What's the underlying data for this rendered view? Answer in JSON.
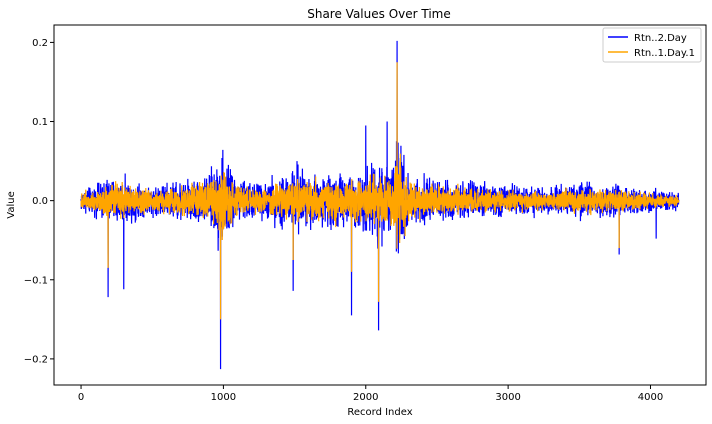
{
  "chart_data": {
    "type": "line",
    "title": "Share Values Over Time",
    "xlabel": "Record Index",
    "ylabel": "Value",
    "xlim": [
      -190,
      4390
    ],
    "ylim": [
      -0.233,
      0.222
    ],
    "xticks": [
      0,
      1000,
      2000,
      3000,
      4000
    ],
    "yticks": [
      -0.2,
      -0.1,
      0.0,
      0.1,
      0.2
    ],
    "ytick_labels": [
      "−0.2",
      "−0.1",
      "0.0",
      "0.1",
      "0.2"
    ],
    "n_points": 4200,
    "legend_position": "upper-right",
    "series": [
      {
        "name": "Rtn..2.Day",
        "color": "#0000ff",
        "envelope": [
          [
            0,
            0.035
          ],
          [
            100,
            0.045
          ],
          [
            200,
            0.075
          ],
          [
            300,
            0.065
          ],
          [
            500,
            0.045
          ],
          [
            700,
            0.06
          ],
          [
            900,
            0.075
          ],
          [
            980,
            0.158
          ],
          [
            1100,
            0.065
          ],
          [
            1300,
            0.055
          ],
          [
            1500,
            0.11
          ],
          [
            1700,
            0.07
          ],
          [
            1800,
            0.09
          ],
          [
            1900,
            0.075
          ],
          [
            2000,
            0.095
          ],
          [
            2100,
            0.133
          ],
          [
            2150,
            0.1
          ],
          [
            2200,
            0.095
          ],
          [
            2220,
            0.202
          ],
          [
            2300,
            0.08
          ],
          [
            2500,
            0.06
          ],
          [
            2700,
            0.055
          ],
          [
            3000,
            0.05
          ],
          [
            3300,
            0.04
          ],
          [
            3500,
            0.055
          ],
          [
            3800,
            0.045
          ],
          [
            4000,
            0.035
          ],
          [
            4190,
            0.025
          ]
        ],
        "spikes": [
          [
            980,
            0.158
          ],
          [
            980,
            -0.213
          ],
          [
            190,
            -0.122
          ],
          [
            300,
            -0.112
          ],
          [
            1490,
            0.11
          ],
          [
            1490,
            -0.114
          ],
          [
            1900,
            -0.145
          ],
          [
            2090,
            0.133
          ],
          [
            2090,
            -0.164
          ],
          [
            2220,
            0.202
          ],
          [
            3780,
            -0.068
          ],
          [
            4040,
            -0.048
          ],
          [
            2000,
            0.095
          ],
          [
            2150,
            0.1
          ]
        ]
      },
      {
        "name": "Rtn..1.Day.1",
        "color": "#ffa500",
        "envelope": [
          [
            0,
            0.025
          ],
          [
            100,
            0.03
          ],
          [
            200,
            0.05
          ],
          [
            300,
            0.045
          ],
          [
            500,
            0.03
          ],
          [
            700,
            0.04
          ],
          [
            900,
            0.05
          ],
          [
            980,
            0.1
          ],
          [
            1100,
            0.045
          ],
          [
            1300,
            0.035
          ],
          [
            1500,
            0.065
          ],
          [
            1700,
            0.05
          ],
          [
            1800,
            0.06
          ],
          [
            1900,
            0.055
          ],
          [
            2000,
            0.06
          ],
          [
            2100,
            0.08
          ],
          [
            2200,
            0.07
          ],
          [
            2220,
            0.175
          ],
          [
            2300,
            0.055
          ],
          [
            2500,
            0.04
          ],
          [
            2700,
            0.035
          ],
          [
            3000,
            0.03
          ],
          [
            3300,
            0.025
          ],
          [
            3500,
            0.035
          ],
          [
            3800,
            0.03
          ],
          [
            4000,
            0.022
          ],
          [
            4190,
            0.015
          ]
        ],
        "spikes": [
          [
            980,
            0.1
          ],
          [
            980,
            -0.15
          ],
          [
            190,
            -0.085
          ],
          [
            1490,
            0.065
          ],
          [
            1490,
            -0.075
          ],
          [
            1900,
            -0.09
          ],
          [
            2090,
            -0.128
          ],
          [
            2220,
            0.175
          ],
          [
            3780,
            -0.06
          ]
        ]
      }
    ]
  }
}
